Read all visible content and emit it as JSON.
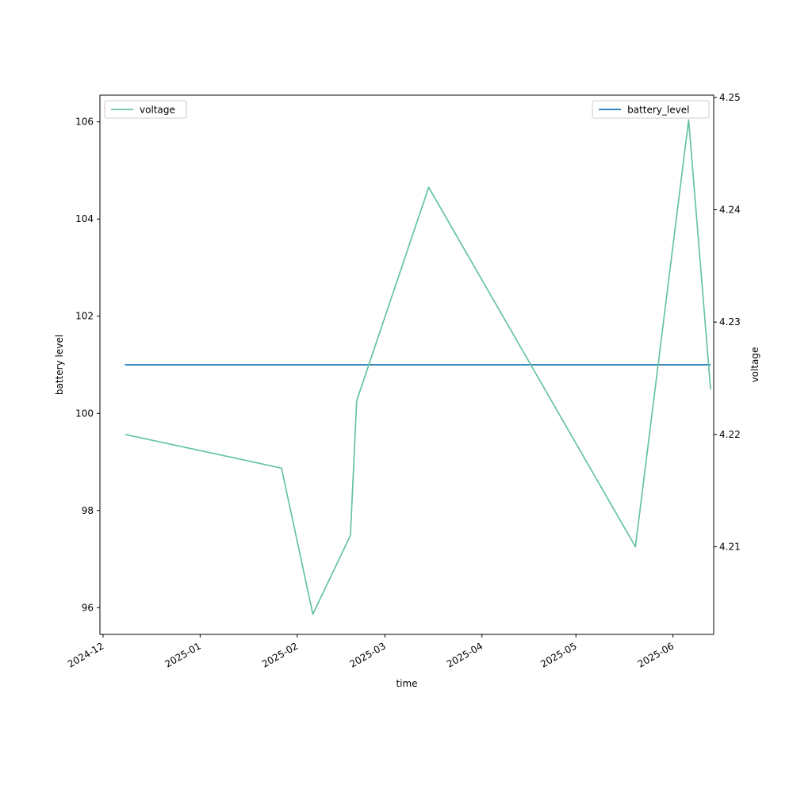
{
  "chart_data": {
    "type": "line",
    "xlabel": "time",
    "ylabel": "battery level",
    "ylabel_right": "voltage",
    "xlim": [
      "2024-11-30",
      "2025-06-14"
    ],
    "ylim": [
      95.45,
      106.55
    ],
    "ylim_right": [
      4.2022,
      4.2502
    ],
    "x_ticks": [
      "2024-12",
      "2025-01",
      "2025-02",
      "2025-03",
      "2025-04",
      "2025-05",
      "2025-06"
    ],
    "y_ticks": [
      96,
      98,
      100,
      102,
      104,
      106
    ],
    "y_ticks_right": [
      4.21,
      4.22,
      4.23,
      4.24,
      4.25
    ],
    "grid": false,
    "series": [
      {
        "name": "battery_level",
        "axis": "left",
        "color": "#1f77b4",
        "x": [
          "2024-12-08",
          "2025-06-13"
        ],
        "y": [
          101,
          101
        ]
      },
      {
        "name": "voltage",
        "axis": "right",
        "color": "#66c2a5",
        "x": [
          "2024-12-08",
          "2025-01-27",
          "2025-02-06",
          "2025-02-18",
          "2025-02-20",
          "2025-03-15",
          "2025-05-20",
          "2025-06-06",
          "2025-06-13"
        ],
        "y": [
          4.22,
          4.217,
          4.204,
          4.211,
          4.223,
          4.242,
          4.21,
          4.248,
          4.224
        ]
      }
    ],
    "legends": {
      "left_axis": {
        "placement": "top-left",
        "entries": [
          "voltage"
        ]
      },
      "right_axis": {
        "placement": "top-right",
        "entries": [
          "battery_level"
        ]
      }
    }
  }
}
